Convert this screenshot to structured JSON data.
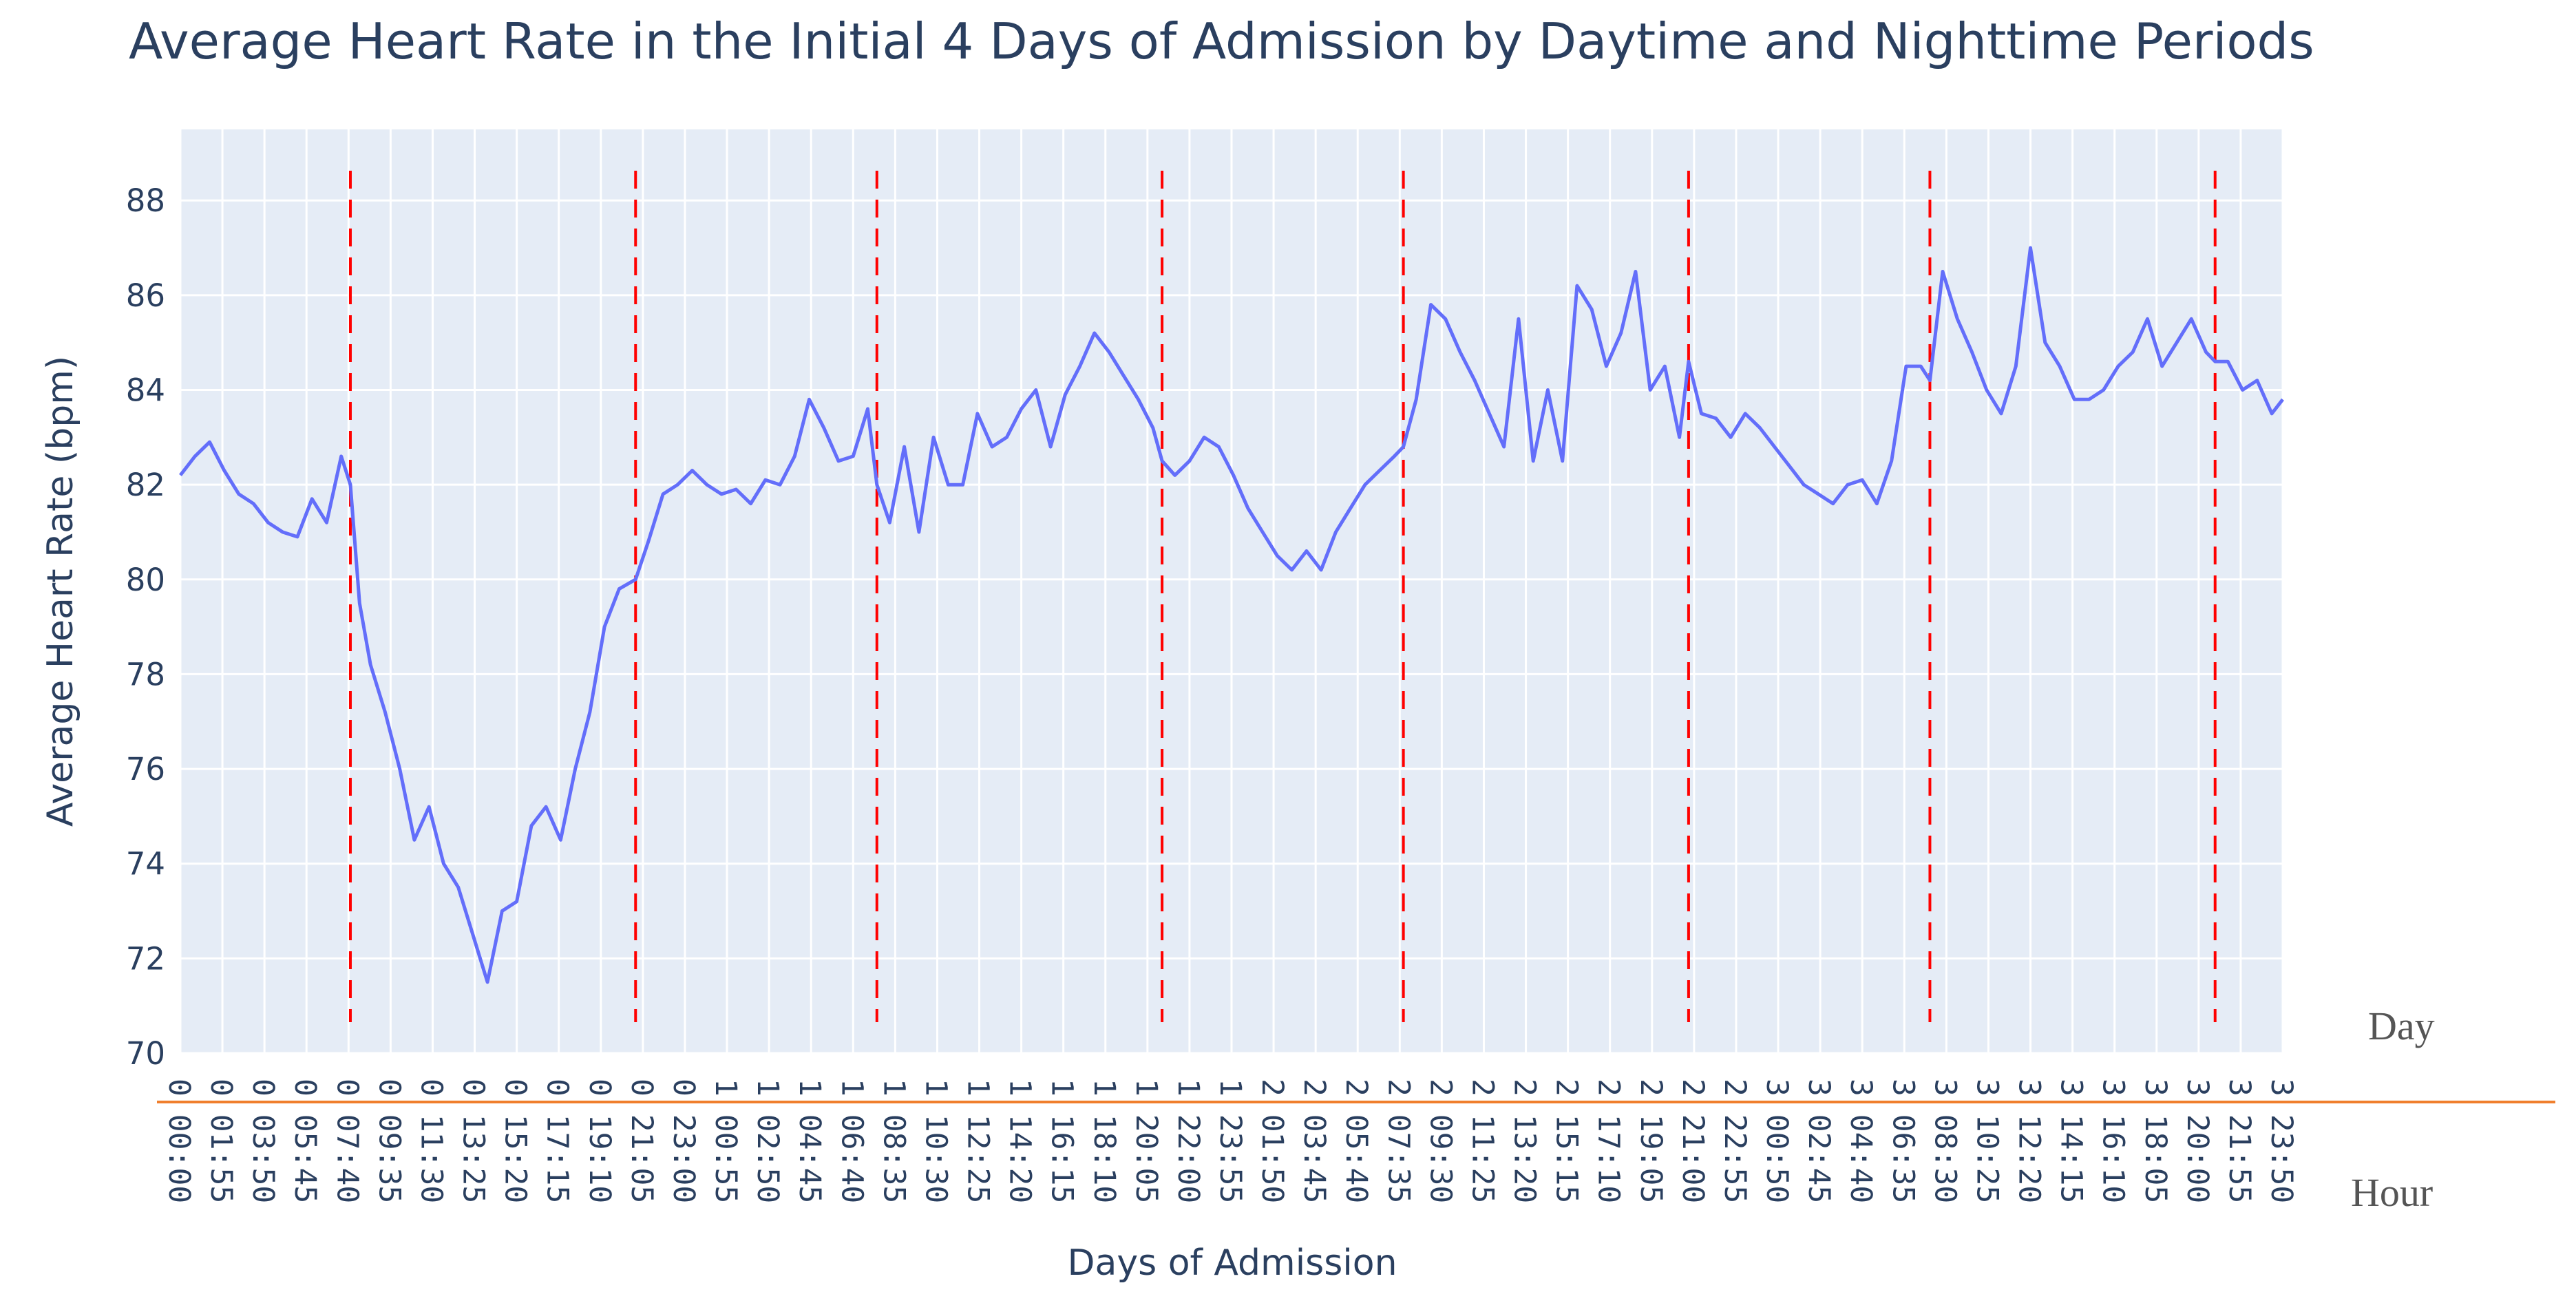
{
  "chart_data": {
    "type": "line",
    "title": "Average Heart Rate in the Initial 4 Days of Admission by Daytime and Nighttime Periods",
    "xlabel": "Days of Admission",
    "ylabel": "Average Heart Rate (bpm)",
    "ylim": [
      70,
      89.5
    ],
    "yticks": [
      70,
      72,
      74,
      76,
      78,
      80,
      82,
      84,
      86,
      88
    ],
    "x_unit": "minutes since admission start (day 0 00:00)",
    "xlim": [
      0,
      5750
    ],
    "x_tick_labels": [
      "0 00:00",
      "0 01:55",
      "0 03:50",
      "0 05:45",
      "0 07:40",
      "0 09:35",
      "0 11:30",
      "0 13:25",
      "0 15:20",
      "0 17:15",
      "0 19:10",
      "0 21:05",
      "0 23:00",
      "1 00:55",
      "1 02:50",
      "1 04:45",
      "1 06:40",
      "1 08:35",
      "1 10:30",
      "1 12:25",
      "1 14:20",
      "1 16:15",
      "1 18:10",
      "1 20:05",
      "1 22:00",
      "1 23:55",
      "2 01:50",
      "2 03:45",
      "2 05:40",
      "2 07:35",
      "2 09:30",
      "2 11:25",
      "2 13:20",
      "2 15:15",
      "2 17:10",
      "2 19:05",
      "2 21:00",
      "2 22:55",
      "3 00:50",
      "3 02:45",
      "3 04:40",
      "3 06:35",
      "3 08:30",
      "3 10:25",
      "3 12:20",
      "3 14:15",
      "3 16:10",
      "3 18:05",
      "3 20:00",
      "3 21:55",
      "3 23:50"
    ],
    "tick_interval_minutes": 115,
    "period_boundaries_minutes": [
      465,
      1245,
      1905,
      2685,
      3345,
      4125,
      4785,
      5565
    ],
    "series": [
      {
        "name": "Average Heart Rate",
        "color": "#636efa",
        "x": [
          0,
          40,
          80,
          120,
          160,
          200,
          240,
          280,
          320,
          360,
          400,
          440,
          465,
          490,
          520,
          560,
          600,
          640,
          680,
          720,
          760,
          800,
          840,
          880,
          920,
          960,
          1000,
          1040,
          1080,
          1120,
          1160,
          1200,
          1245,
          1280,
          1320,
          1360,
          1400,
          1440,
          1480,
          1520,
          1560,
          1600,
          1640,
          1680,
          1720,
          1760,
          1800,
          1840,
          1880,
          1905,
          1940,
          1980,
          2020,
          2060,
          2100,
          2140,
          2180,
          2220,
          2260,
          2300,
          2340,
          2380,
          2420,
          2460,
          2500,
          2540,
          2580,
          2620,
          2660,
          2685,
          2720,
          2760,
          2800,
          2840,
          2880,
          2920,
          2960,
          3000,
          3040,
          3080,
          3120,
          3160,
          3200,
          3240,
          3280,
          3320,
          3345,
          3380,
          3420,
          3460,
          3500,
          3540,
          3580,
          3620,
          3660,
          3700,
          3740,
          3780,
          3820,
          3860,
          3900,
          3940,
          3980,
          4020,
          4060,
          4100,
          4125,
          4160,
          4200,
          4240,
          4280,
          4320,
          4360,
          4400,
          4440,
          4480,
          4520,
          4560,
          4600,
          4640,
          4680,
          4720,
          4760,
          4785,
          4820,
          4860,
          4900,
          4940,
          4980,
          5020,
          5060,
          5100,
          5140,
          5180,
          5220,
          5260,
          5300,
          5340,
          5380,
          5420,
          5460,
          5500,
          5540,
          5565,
          5600,
          5640,
          5680,
          5720,
          5750
        ],
        "values": [
          82.2,
          82.6,
          82.9,
          82.3,
          81.8,
          81.6,
          81.2,
          81.0,
          80.9,
          81.7,
          81.2,
          82.6,
          82.0,
          79.5,
          78.2,
          77.2,
          76.0,
          74.5,
          75.2,
          74.0,
          73.5,
          72.5,
          71.5,
          73.0,
          73.2,
          74.8,
          75.2,
          74.5,
          76.0,
          77.2,
          79.0,
          79.8,
          80.0,
          80.8,
          81.8,
          82.0,
          82.3,
          82.0,
          81.8,
          81.9,
          81.6,
          82.1,
          82.0,
          82.6,
          83.8,
          83.2,
          82.5,
          82.6,
          83.6,
          82.0,
          81.2,
          82.8,
          81.0,
          83.0,
          82.0,
          82.0,
          83.5,
          82.8,
          83.0,
          83.6,
          84.0,
          82.8,
          83.9,
          84.5,
          85.2,
          84.8,
          84.3,
          83.8,
          83.2,
          82.5,
          82.2,
          82.5,
          83.0,
          82.8,
          82.2,
          81.5,
          81.0,
          80.5,
          80.2,
          80.6,
          80.2,
          81.0,
          81.5,
          82.0,
          82.3,
          82.6,
          82.8,
          83.8,
          85.8,
          85.5,
          84.8,
          84.2,
          83.5,
          82.8,
          85.5,
          82.5,
          84.0,
          82.5,
          86.2,
          85.7,
          84.5,
          85.2,
          86.5,
          84.0,
          84.5,
          83.0,
          84.6,
          83.5,
          83.4,
          83.0,
          83.5,
          83.2,
          82.8,
          82.4,
          82.0,
          81.8,
          81.6,
          82.0,
          82.1,
          81.6,
          82.5,
          84.5,
          84.5,
          84.2,
          86.5,
          85.5,
          84.8,
          84.0,
          83.5,
          84.5,
          87.0,
          85.0,
          84.5,
          83.8,
          83.8,
          84.0,
          84.5,
          84.8,
          85.5,
          84.5,
          85.0,
          85.5,
          84.8,
          84.6,
          84.6,
          84.0,
          84.2,
          83.5,
          83.8
        ]
      }
    ]
  },
  "side_labels": {
    "day": "Day",
    "hour": "Hour"
  },
  "colors": {
    "plot_bg": "#e5ecf6",
    "grid": "#ffffff",
    "line": "#636efa",
    "boundary": "#ff0000",
    "separator": "#f07f2d",
    "text": "#2a3f5f"
  }
}
